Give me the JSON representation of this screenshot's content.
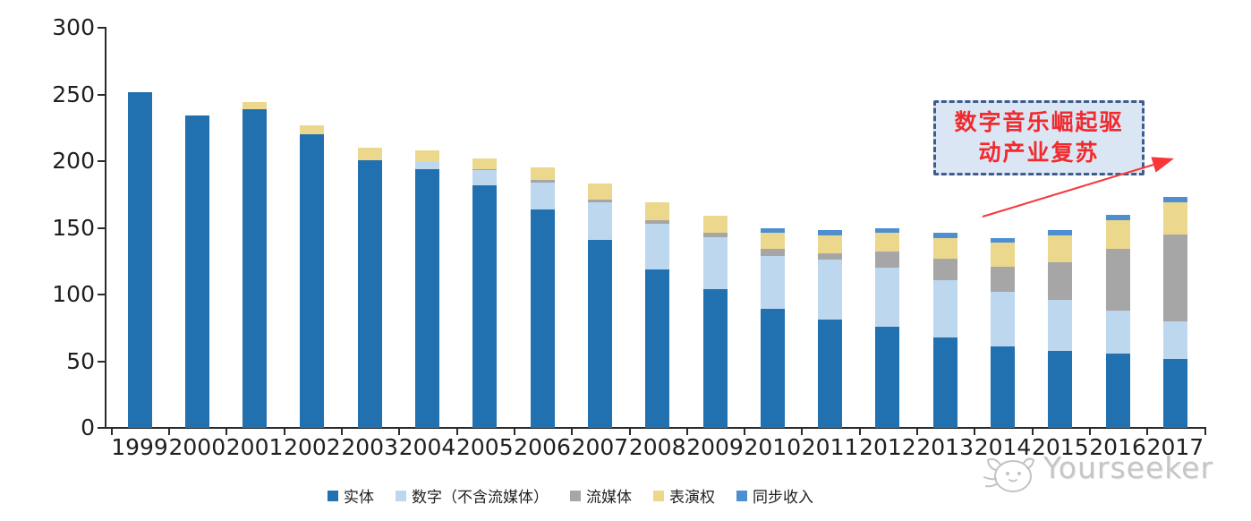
{
  "chart_data": {
    "type": "bar",
    "stacked": true,
    "title": "",
    "xlabel": "",
    "ylabel": "",
    "ylim": [
      0,
      300
    ],
    "yticks": [
      0,
      50,
      100,
      150,
      200,
      250,
      300
    ],
    "grid": false,
    "legend_position": "bottom",
    "categories": [
      "1999",
      "2000",
      "2001",
      "2002",
      "2003",
      "2004",
      "2005",
      "2006",
      "2007",
      "2008",
      "2009",
      "2010",
      "2011",
      "2012",
      "2013",
      "2014",
      "2015",
      "2016",
      "2017"
    ],
    "series": [
      {
        "name": "实体",
        "color": "#2170AF",
        "values": [
          252,
          234,
          239,
          220,
          201,
          194,
          182,
          164,
          141,
          119,
          104,
          89,
          81,
          76,
          68,
          61,
          58,
          56,
          52
        ]
      },
      {
        "name": "数字（不含流媒体）",
        "color": "#BDD7EE",
        "values": [
          0,
          0,
          0,
          0,
          0,
          5,
          11,
          20,
          28,
          34,
          39,
          40,
          45,
          44,
          43,
          41,
          38,
          32,
          28
        ]
      },
      {
        "name": "流媒体",
        "color": "#A6A6A6",
        "values": [
          0,
          0,
          0,
          0,
          0,
          0,
          1,
          2,
          2,
          3,
          3,
          5,
          5,
          12,
          16,
          19,
          28,
          46,
          65
        ]
      },
      {
        "name": "表演权",
        "color": "#EBD88C",
        "values": [
          0,
          0,
          5,
          7,
          9,
          9,
          8,
          9,
          12,
          13,
          13,
          12,
          13,
          14,
          15,
          18,
          20,
          22,
          24
        ]
      },
      {
        "name": "同步收入",
        "color": "#4E8FD2",
        "values": [
          0,
          0,
          0,
          0,
          0,
          0,
          0,
          0,
          0,
          0,
          0,
          4,
          4,
          4,
          4,
          3,
          4,
          4,
          4
        ]
      }
    ],
    "totals": [
      252,
      234,
      244,
      227,
      210,
      208,
      202,
      195,
      183,
      169,
      159,
      150,
      148,
      150,
      146,
      142,
      148,
      160,
      173
    ]
  },
  "annotation": {
    "line1": "数字音乐崛起驱",
    "line2": "动产业复苏",
    "text_color": "#F02A2D",
    "box_fill": "#DBE6F4",
    "box_border": "#3F5D8C",
    "arrow_color": "#F93538"
  },
  "axis": {
    "color": "#2B2B2B",
    "label_color": "#1F1F1F"
  },
  "watermark": {
    "brand": "Yourseeker",
    "color": "#C6C6C6"
  }
}
